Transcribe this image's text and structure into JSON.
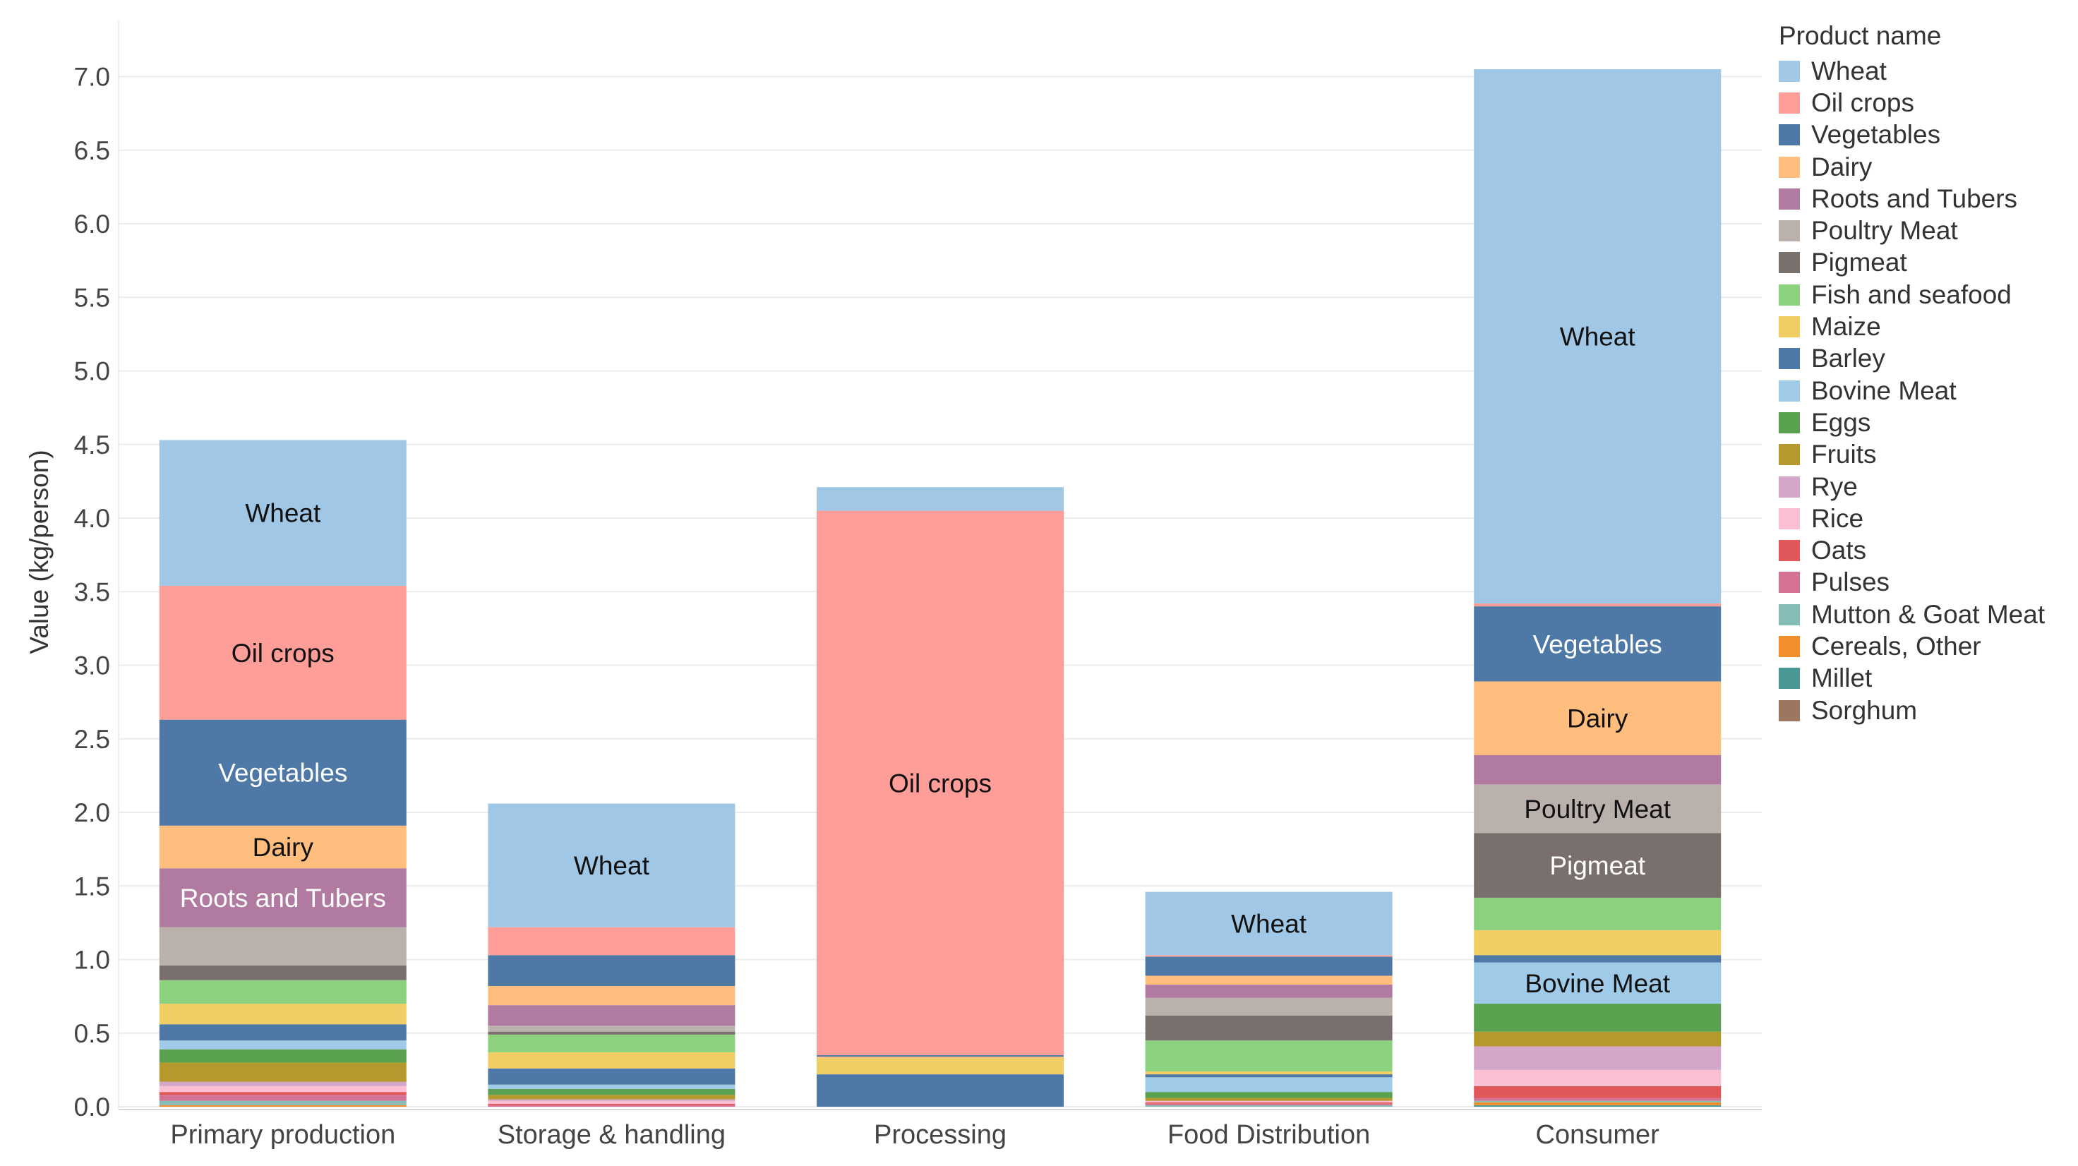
{
  "chart_data": {
    "type": "bar",
    "stacked": true,
    "ylabel": "Value (kg/person)",
    "ylim": [
      -0.1,
      7.3
    ],
    "yticks": [
      "0.0",
      "0.5",
      "1.0",
      "1.5",
      "2.0",
      "2.5",
      "3.0",
      "3.5",
      "4.0",
      "4.5",
      "5.0",
      "5.5",
      "6.0",
      "6.5",
      "7.0"
    ],
    "categories": [
      "Primary production",
      "Storage & handling",
      "Processing",
      "Food Distribution",
      "Consumer"
    ],
    "legend": {
      "title": "Product name",
      "position": "right",
      "items": [
        {
          "name": "Wheat",
          "color": "#a0c8e6"
        },
        {
          "name": "Oil crops",
          "color": "#ff9d98"
        },
        {
          "name": "Vegetables",
          "color": "#4e79a7"
        },
        {
          "name": "Dairy",
          "color": "#ffbe7d"
        },
        {
          "name": "Roots and Tubers",
          "color": "#b07aa1"
        },
        {
          "name": "Poultry Meat",
          "color": "#bab0ac"
        },
        {
          "name": "Pigmeat",
          "color": "#79706e"
        },
        {
          "name": "Fish and seafood",
          "color": "#8cd17d"
        },
        {
          "name": "Maize",
          "color": "#f1ce63"
        },
        {
          "name": "Barley",
          "color": "#4e79a7"
        },
        {
          "name": "Bovine Meat",
          "color": "#a0cbe8"
        },
        {
          "name": "Eggs",
          "color": "#59a14f"
        },
        {
          "name": "Fruits",
          "color": "#b6992d"
        },
        {
          "name": "Rye",
          "color": "#d4a6c8"
        },
        {
          "name": "Rice",
          "color": "#fabfd2"
        },
        {
          "name": "Oats",
          "color": "#e15759"
        },
        {
          "name": "Pulses",
          "color": "#d37295"
        },
        {
          "name": "Mutton & Goat Meat",
          "color": "#86bcb6"
        },
        {
          "name": "Cereals, Other",
          "color": "#f28e2b"
        },
        {
          "name": "Millet",
          "color": "#499894"
        },
        {
          "name": "Sorghum",
          "color": "#9d7660"
        }
      ]
    },
    "stack_order": [
      "Sorghum",
      "Millet",
      "Cereals, Other",
      "Mutton & Goat Meat",
      "Pulses",
      "Oats",
      "Rice",
      "Rye",
      "Fruits",
      "Eggs",
      "Bovine Meat",
      "Barley",
      "Maize",
      "Fish and seafood",
      "Pigmeat",
      "Poultry Meat",
      "Roots and Tubers",
      "Dairy",
      "Vegetables",
      "Oil crops",
      "Wheat"
    ],
    "series": [
      {
        "name": "Wheat",
        "values": [
          0.99,
          0.84,
          0.16,
          0.43,
          3.63
        ]
      },
      {
        "name": "Oil crops",
        "values": [
          0.91,
          0.19,
          3.7,
          0.01,
          0.02
        ]
      },
      {
        "name": "Vegetables",
        "values": [
          0.72,
          0.21,
          0.01,
          0.13,
          0.51
        ]
      },
      {
        "name": "Dairy",
        "values": [
          0.29,
          0.13,
          0.01,
          0.06,
          0.5
        ]
      },
      {
        "name": "Roots and Tubers",
        "values": [
          0.4,
          0.14,
          0.0,
          0.09,
          0.2
        ]
      },
      {
        "name": "Poultry Meat",
        "values": [
          0.26,
          0.04,
          0.0,
          0.12,
          0.33
        ]
      },
      {
        "name": "Pigmeat",
        "values": [
          0.1,
          0.02,
          0.0,
          0.17,
          0.44
        ]
      },
      {
        "name": "Fish and seafood",
        "values": [
          0.16,
          0.12,
          0.0,
          0.21,
          0.22
        ]
      },
      {
        "name": "Maize",
        "values": [
          0.14,
          0.11,
          0.11,
          0.02,
          0.17
        ]
      },
      {
        "name": "Barley",
        "values": [
          0.11,
          0.11,
          0.22,
          0.02,
          0.05
        ]
      },
      {
        "name": "Bovine Meat",
        "values": [
          0.06,
          0.03,
          0.0,
          0.1,
          0.28
        ]
      },
      {
        "name": "Eggs",
        "values": [
          0.09,
          0.04,
          0.0,
          0.04,
          0.19
        ]
      },
      {
        "name": "Fruits",
        "values": [
          0.13,
          0.03,
          0.0,
          0.02,
          0.1
        ]
      },
      {
        "name": "Rye",
        "values": [
          0.03,
          0.01,
          0.0,
          0.0,
          0.16
        ]
      },
      {
        "name": "Rice",
        "values": [
          0.04,
          0.02,
          0.0,
          0.01,
          0.11
        ]
      },
      {
        "name": "Oats",
        "values": [
          0.02,
          0.01,
          0.0,
          0.01,
          0.08
        ]
      },
      {
        "name": "Pulses",
        "values": [
          0.04,
          0.01,
          0.0,
          0.01,
          0.02
        ]
      },
      {
        "name": "Mutton & Goat Meat",
        "values": [
          0.03,
          0.0,
          0.0,
          0.01,
          0.01
        ]
      },
      {
        "name": "Cereals, Other",
        "values": [
          0.01,
          0.0,
          0.0,
          0.0,
          0.02
        ]
      },
      {
        "name": "Millet",
        "values": [
          0.0,
          0.0,
          0.0,
          0.0,
          0.01
        ]
      },
      {
        "name": "Sorghum",
        "values": [
          0.0,
          0.0,
          0.0,
          0.0,
          0.0
        ]
      }
    ],
    "segment_labels": [
      {
        "category": "Primary production",
        "series": "Wheat",
        "text": "Wheat"
      },
      {
        "category": "Primary production",
        "series": "Oil crops",
        "text": "Oil crops"
      },
      {
        "category": "Primary production",
        "series": "Vegetables",
        "text": "Vegetables"
      },
      {
        "category": "Primary production",
        "series": "Dairy",
        "text": "Dairy"
      },
      {
        "category": "Primary production",
        "series": "Roots and Tubers",
        "text": "Roots and Tubers"
      },
      {
        "category": "Storage & handling",
        "series": "Wheat",
        "text": "Wheat"
      },
      {
        "category": "Processing",
        "series": "Oil crops",
        "text": "Oil crops"
      },
      {
        "category": "Food Distribution",
        "series": "Wheat",
        "text": "Wheat"
      },
      {
        "category": "Consumer",
        "series": "Wheat",
        "text": "Wheat"
      },
      {
        "category": "Consumer",
        "series": "Vegetables",
        "text": "Vegetables"
      },
      {
        "category": "Consumer",
        "series": "Dairy",
        "text": "Dairy"
      },
      {
        "category": "Consumer",
        "series": "Poultry Meat",
        "text": "Poultry Meat"
      },
      {
        "category": "Consumer",
        "series": "Pigmeat",
        "text": "Pigmeat"
      },
      {
        "category": "Consumer",
        "series": "Bovine Meat",
        "text": "Bovine Meat"
      }
    ],
    "light_label_series": [
      "Vegetables",
      "Roots and Tubers",
      "Pigmeat"
    ]
  }
}
